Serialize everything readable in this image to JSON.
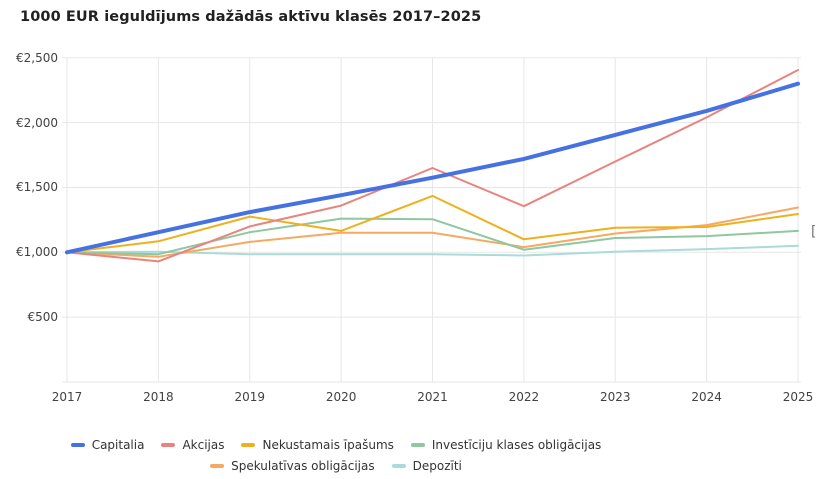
{
  "title": "1000 EUR ieguldījums dažādās aktīvu klasēs 2017–2025",
  "clipped_artifact": "[",
  "chart_data": {
    "type": "line",
    "x": [
      2017,
      2018,
      2019,
      2020,
      2021,
      2022,
      2023,
      2024,
      2025
    ],
    "series": [
      {
        "name": "Capitalia",
        "color": "#4671E0",
        "width": 4,
        "values": [
          1000,
          1155,
          1310,
          1440,
          1575,
          1720,
          1905,
          2090,
          2300
        ]
      },
      {
        "name": "Akcijas",
        "color": "#E8847E",
        "width": 2,
        "values": [
          1000,
          930,
          1200,
          1360,
          1650,
          1355,
          1700,
          2040,
          2405
        ]
      },
      {
        "name": "Nekustamais īpašums",
        "color": "#EFB01E",
        "width": 2,
        "values": [
          1000,
          1085,
          1275,
          1165,
          1435,
          1100,
          1190,
          1195,
          1295
        ]
      },
      {
        "name": "Investīciju klases obligācijas",
        "color": "#8FC79F",
        "width": 2,
        "values": [
          1000,
          985,
          1155,
          1260,
          1255,
          1020,
          1110,
          1125,
          1165
        ]
      },
      {
        "name": "Spekulatīvas obligācijas",
        "color": "#F5A963",
        "width": 2,
        "values": [
          1000,
          965,
          1080,
          1150,
          1150,
          1040,
          1145,
          1210,
          1345
        ]
      },
      {
        "name": "Depozīti",
        "color": "#A9DBD7",
        "width": 2,
        "values": [
          1000,
          1005,
          985,
          985,
          985,
          975,
          1005,
          1025,
          1050
        ]
      }
    ],
    "y_ticks": [
      {
        "label": "€500",
        "value": 500
      },
      {
        "label": "€1,000",
        "value": 1000
      },
      {
        "label": "€1,500",
        "value": 1500
      },
      {
        "label": "€2,000",
        "value": 2000
      },
      {
        "label": "€2,500",
        "value": 2500
      }
    ],
    "ylim": [
      0,
      2550
    ],
    "xlabel": "",
    "ylabel": "",
    "grid": true,
    "grid_color": "#E7E7E7",
    "legend_position": "bottom",
    "legend_rows": [
      4,
      2
    ]
  }
}
